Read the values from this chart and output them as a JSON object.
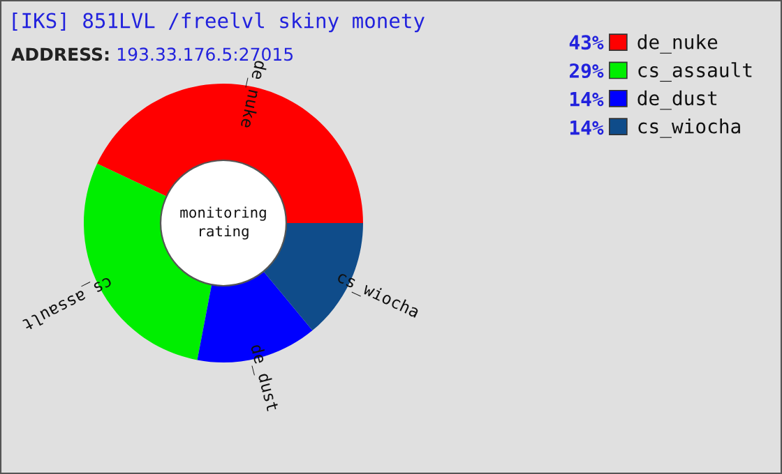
{
  "chart_data": {
    "type": "donut",
    "title": "[IKS] 851LVL /freelvl skiny monety",
    "subtitle": "ADDRESS: 193.33.176.5:27015",
    "categories": [
      "de_nuke",
      "cs_assault",
      "de_dust",
      "cs_wiocha"
    ],
    "values": [
      43,
      29,
      14,
      14
    ],
    "colors": [
      "#ff0000",
      "#00ee00",
      "#0000ff",
      "#0f4c8a"
    ],
    "value_labels": [
      "43%",
      "29%",
      "14%",
      "14%"
    ],
    "legend": "top right",
    "annotations": [
      "monitoring\nrating"
    ]
  }
}
